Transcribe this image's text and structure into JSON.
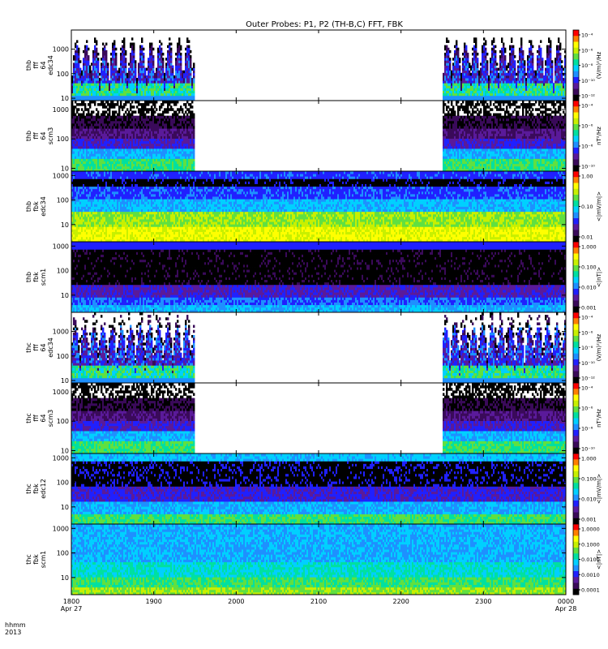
{
  "title": "Outer Probes: P1, P2 (TH-B,C) FFT, FBK",
  "colors": {
    "palette": [
      "#000000",
      "#3a0a5a",
      "#5a1a9a",
      "#2020ff",
      "#1e90ff",
      "#00d0ff",
      "#00e0a0",
      "#60e040",
      "#c8f000",
      "#ffff00",
      "#ff8000",
      "#ff0000"
    ],
    "frame": "#000000"
  },
  "chart_data": {
    "type": "heatmap",
    "x_axis": {
      "label_line1": "hhmm",
      "label_line2": "2013",
      "ticks": [
        {
          "t": 0,
          "label": "1800",
          "sub": "Apr 27"
        },
        {
          "t": 1,
          "label": "1900",
          "sub": ""
        },
        {
          "t": 2,
          "label": "2000",
          "sub": ""
        },
        {
          "t": 3,
          "label": "2100",
          "sub": ""
        },
        {
          "t": 4,
          "label": "2200",
          "sub": ""
        },
        {
          "t": 5,
          "label": "2300",
          "sub": ""
        },
        {
          "t": 6,
          "label": "0000",
          "sub": "Apr 28"
        }
      ],
      "range_hours": [
        0,
        6
      ]
    },
    "panels": [
      {
        "ylabel": [
          "thb",
          "fff",
          "64",
          "edc34"
        ],
        "yticks": [
          "1000",
          "100",
          "10"
        ],
        "ylog": true,
        "yrange": [
          8,
          6000
        ],
        "data_intervals": [
          [
            0,
            1.5
          ],
          [
            4.5,
            6
          ]
        ],
        "pattern": "bursty-efield",
        "cbar": {
          "labels": [
            "10⁻⁴",
            "10⁻⁶",
            "10⁻⁸",
            "10⁻¹⁰",
            "10⁻¹²"
          ],
          "units": "(V/m)²/Hz"
        }
      },
      {
        "ylabel": [
          "thb",
          "fff",
          "64",
          "scm3"
        ],
        "yticks": [
          "1000",
          "100",
          "10"
        ],
        "ylog": true,
        "yrange": [
          8,
          2000
        ],
        "data_intervals": [
          [
            0,
            1.5
          ],
          [
            4.5,
            6
          ]
        ],
        "pattern": "scm-fff",
        "cbar": {
          "labels": [
            "10⁻⁴",
            "10⁻⁶",
            "10⁻⁸",
            "10⁻¹⁰"
          ],
          "units": "nT²/Hz"
        }
      },
      {
        "ylabel": [
          "thb",
          "fbk",
          "edc34"
        ],
        "yticks": [
          "1000",
          "100",
          "10"
        ],
        "ylog": true,
        "yrange": [
          2,
          1500
        ],
        "data_intervals": [
          [
            0,
            6
          ]
        ],
        "pattern": "fbk-efield",
        "cbar": {
          "labels": [
            "1.00",
            "0.10",
            "0.01"
          ],
          "units": "<|mV/m|>"
        }
      },
      {
        "ylabel": [
          "thb",
          "fbk",
          "scm1"
        ],
        "yticks": [
          "1000",
          "100",
          "10"
        ],
        "ylog": true,
        "yrange": [
          2,
          1500
        ],
        "data_intervals": [
          [
            0,
            6
          ]
        ],
        "pattern": "fbk-scm-b",
        "cbar": {
          "labels": [
            "1.000",
            "0.100",
            "0.010",
            "0.001"
          ],
          "units": "<|nT|>"
        }
      },
      {
        "ylabel": [
          "thc",
          "fff",
          "64",
          "edc34"
        ],
        "yticks": [
          "1000",
          "100",
          "10"
        ],
        "ylog": true,
        "yrange": [
          8,
          6000
        ],
        "data_intervals": [
          [
            0,
            1.5
          ],
          [
            4.5,
            6
          ]
        ],
        "pattern": "bursty-efield-c",
        "cbar": {
          "labels": [
            "10⁻⁴",
            "10⁻⁶",
            "10⁻⁸",
            "10⁻¹⁰",
            "10⁻¹²"
          ],
          "units": "(V/m)²/Hz"
        }
      },
      {
        "ylabel": [
          "thc",
          "fff",
          "64",
          "scm3"
        ],
        "yticks": [
          "1000",
          "100",
          "10"
        ],
        "ylog": true,
        "yrange": [
          8,
          2000
        ],
        "data_intervals": [
          [
            0,
            1.5
          ],
          [
            4.5,
            6
          ]
        ],
        "pattern": "scm-fff",
        "cbar": {
          "labels": [
            "10⁻⁴",
            "10⁻⁶",
            "10⁻⁸",
            "10⁻¹⁰"
          ],
          "units": "nT²/Hz"
        }
      },
      {
        "ylabel": [
          "thc",
          "fbk",
          "edc12"
        ],
        "yticks": [
          "1000",
          "100",
          "10"
        ],
        "ylog": true,
        "yrange": [
          2,
          1500
        ],
        "data_intervals": [
          [
            0,
            6
          ]
        ],
        "pattern": "fbk-efield-c",
        "cbar": {
          "labels": [
            "1.000",
            "0.100",
            "0.010",
            "0.001"
          ],
          "units": "<|mV/m|>"
        }
      },
      {
        "ylabel": [
          "thc",
          "fbk",
          "scm1"
        ],
        "yticks": [
          "1000",
          "100",
          "10"
        ],
        "ylog": true,
        "yrange": [
          2,
          1500
        ],
        "data_intervals": [
          [
            0,
            6
          ]
        ],
        "pattern": "fbk-scm-c",
        "cbar": {
          "labels": [
            "1.0000",
            "0.1000",
            "0.0100",
            "0.0010",
            "0.0001"
          ],
          "units": "<|nT|>"
        }
      }
    ]
  }
}
